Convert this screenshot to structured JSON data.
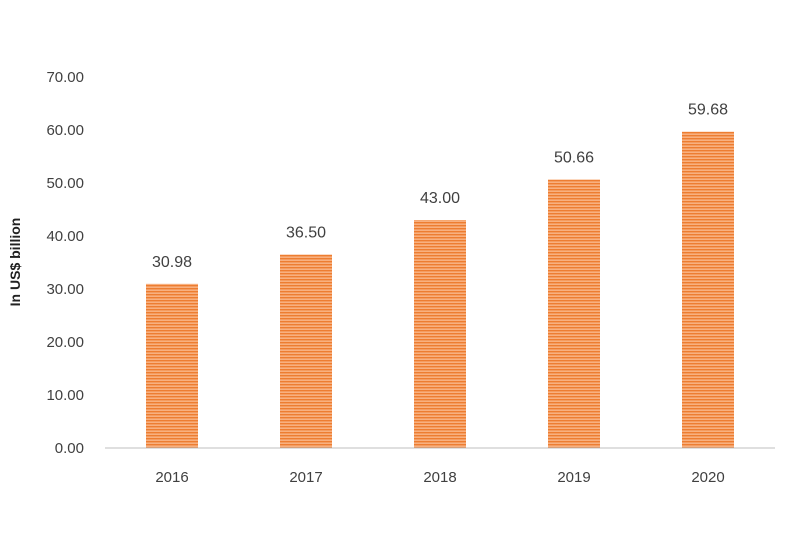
{
  "chart_data": {
    "type": "bar",
    "title": "",
    "xlabel": "",
    "ylabel": "In US$ billion",
    "categories": [
      "2016",
      "2017",
      "2018",
      "2019",
      "2020"
    ],
    "values": [
      30.98,
      36.5,
      43.0,
      50.66,
      59.68
    ],
    "data_labels": [
      "30.98",
      "36.50",
      "43.00",
      "50.66",
      "59.68"
    ],
    "ylim": [
      0,
      70
    ],
    "yticks": [
      0,
      10,
      20,
      30,
      40,
      50,
      60,
      70
    ],
    "ytick_labels": [
      "0.00",
      "10.00",
      "20.00",
      "30.00",
      "40.00",
      "50.00",
      "60.00",
      "70.00"
    ],
    "grid": false,
    "legend": "none",
    "bar_color": "#F5A26B",
    "bar_stripe_color": "#ED7D31"
  }
}
